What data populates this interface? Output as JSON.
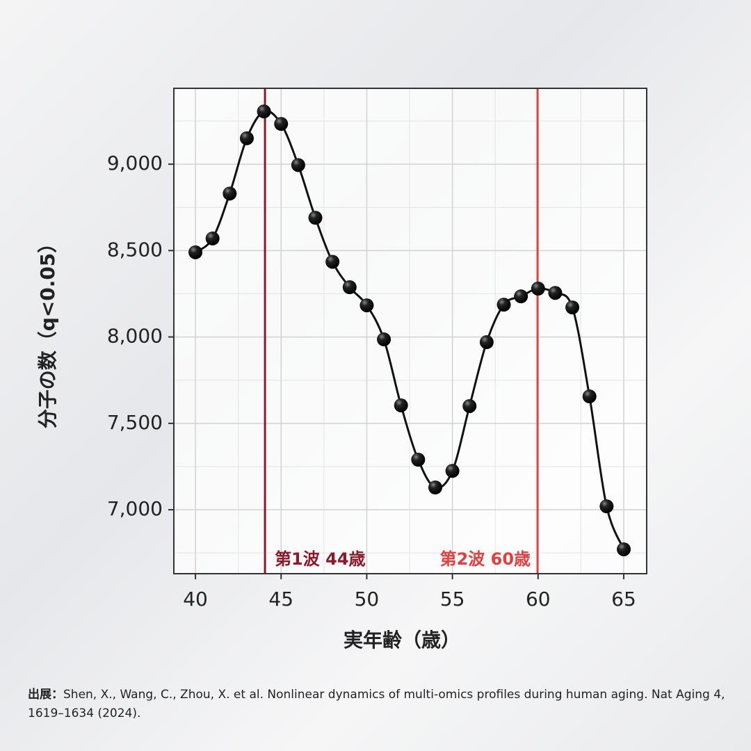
{
  "chart_data": {
    "type": "line",
    "x_label": "実年齢（歳）",
    "y_label": "分子の数（q<0.05）",
    "x": [
      40,
      41,
      42,
      43,
      44,
      45,
      46,
      47,
      48,
      49,
      50,
      51,
      52,
      53,
      54,
      55,
      56,
      57,
      58,
      59,
      60,
      61,
      62,
      63,
      64,
      65
    ],
    "series": [
      {
        "color": "#111111",
        "values": [
          8490,
          8570,
          8830,
          9150,
          9305,
          9233,
          8995,
          8690,
          8435,
          8288,
          8183,
          7986,
          7604,
          7290,
          7129,
          7225,
          7600,
          7970,
          8187,
          8235,
          8280,
          8255,
          8171,
          7656,
          7020,
          6771
        ]
      }
    ],
    "xlim": [
      38.74,
      66.34
    ],
    "ylim": [
      6630,
      9439
    ],
    "xticks": [
      40,
      45,
      50,
      55,
      60,
      65
    ],
    "yticks": [
      {
        "value": 7000,
        "label": "7,000"
      },
      {
        "value": 7500,
        "label": "7,500"
      },
      {
        "value": 8000,
        "label": "8,000"
      },
      {
        "value": 8500,
        "label": "8,500"
      },
      {
        "value": 9000,
        "label": "9,000"
      }
    ],
    "grid": true,
    "vlines": [
      {
        "x": 44.06,
        "label": "第1波 44歳",
        "color": "#8b1a2a"
      },
      {
        "x": 59.97,
        "label": "第2波 60歳",
        "color": "#e0403f"
      }
    ]
  },
  "source_label": "出展：",
  "source": "Shen, X., Wang, C., Zhou, X. et al. Nonlinear dynamics of multi-omics profiles during human aging. Nat Aging 4, 1619–1634 (2024)."
}
